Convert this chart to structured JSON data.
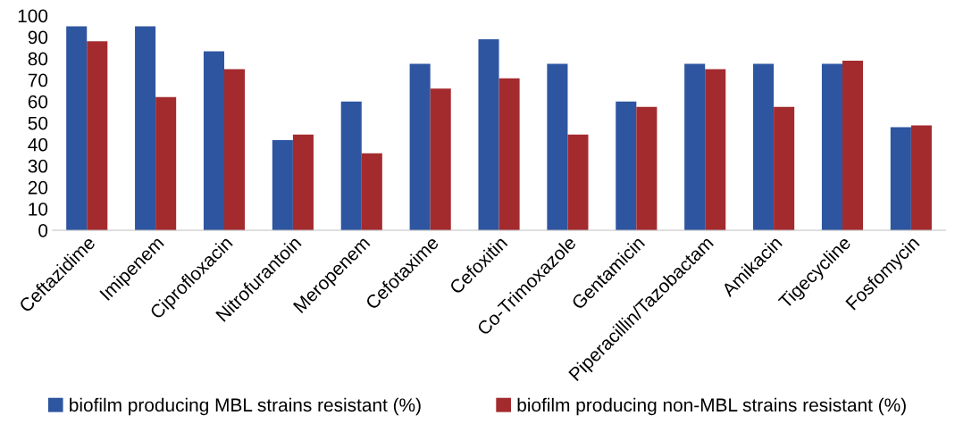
{
  "chart_data": {
    "type": "bar",
    "categories": [
      "Ceftazidime",
      "Imipenem",
      "Ciprofloxacin",
      "Nitrofurantoin",
      "Meropenem",
      "Cefotaxime",
      "Cefoxitin",
      "Co-Trimoxazole",
      "Gentamicin",
      "Piperacillin/Tazobactam",
      "Amikacin",
      "Tigecycline",
      "Fosfomycin"
    ],
    "series": [
      {
        "name": "biofilm producing MBL strains resistant (%)",
        "color": "#2e55a0",
        "values": [
          95,
          95,
          83.3,
          42,
          60,
          77.5,
          89,
          77.5,
          60,
          77.5,
          77.5,
          77.5,
          48
        ]
      },
      {
        "name": "biofilm producing non-MBL strains resistant (%)",
        "color": "#a32b2e",
        "values": [
          88,
          62,
          75,
          44.6,
          35.8,
          66,
          70.8,
          44.6,
          57.5,
          75,
          57.5,
          79,
          48.8
        ]
      }
    ],
    "ylim": [
      0,
      100
    ],
    "yticks": [
      0,
      10,
      20,
      30,
      40,
      50,
      60,
      70,
      80,
      90,
      100
    ],
    "grid": false,
    "legend": "bottom"
  }
}
